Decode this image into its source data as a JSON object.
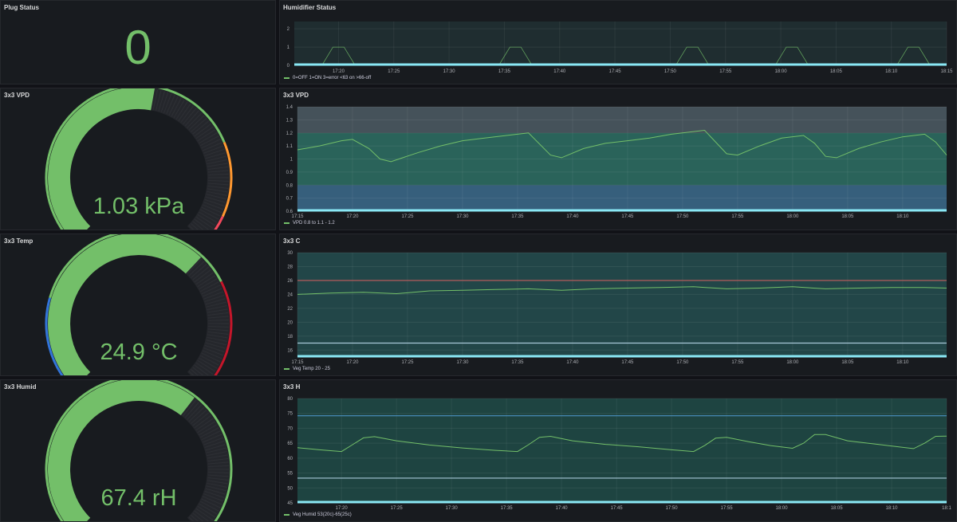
{
  "colors": {
    "background": "#111217",
    "panel": "#181b1f",
    "green": "#73bf69",
    "cyan": "#8ae8f5",
    "red": "#e02f44",
    "orange": "#ff9830",
    "blue": "#3274d9",
    "track": "#2b2d32"
  },
  "plug_status": {
    "title": "Plug Status",
    "value": "0"
  },
  "humidifier_status": {
    "title": "Humidifier Status",
    "legend": "0=OFF 1=ON 3=error <63 on >66-off"
  },
  "gauges": [
    {
      "title": "3x3 VPD",
      "display": "1.03 kPa",
      "value": 1.03,
      "min": 0.6,
      "max": 1.4,
      "thresholds": [
        {
          "from": 0.6,
          "to": 0.62,
          "color": "#5794f2"
        },
        {
          "from": 0.62,
          "to": 1.2,
          "color": "#73bf69"
        },
        {
          "from": 1.2,
          "to": 1.34,
          "color": "#ff9830"
        },
        {
          "from": 1.34,
          "to": 1.4,
          "color": "#f2495c"
        }
      ]
    },
    {
      "title": "3x3 Temp",
      "display": "24.9 °C",
      "value": 24.9,
      "min": 15,
      "max": 30,
      "thresholds": [
        {
          "from": 15,
          "to": 18.4,
          "color": "#3274d9"
        },
        {
          "from": 18.4,
          "to": 26,
          "color": "#73bf69"
        },
        {
          "from": 26,
          "to": 30,
          "color": "#c4162a"
        }
      ]
    },
    {
      "title": "3x3 Humid",
      "display": "67.4 rH",
      "value": 67.4,
      "min": 45,
      "max": 80,
      "thresholds": [
        {
          "from": 45,
          "to": 45.6,
          "color": "#5794f2"
        },
        {
          "from": 45.6,
          "to": 79,
          "color": "#73bf69"
        },
        {
          "from": 79,
          "to": 80,
          "color": "#f2495c"
        }
      ]
    }
  ],
  "chart_data": [
    {
      "type": "line",
      "title": "Humidifier Status",
      "x_ticks": [
        "17:20",
        "17:25",
        "17:30",
        "17:35",
        "17:40",
        "17:45",
        "17:50",
        "17:55",
        "18:00",
        "18:05",
        "18:10",
        "18:15"
      ],
      "x_range": [
        "17:16",
        "18:15"
      ],
      "y_ticks": [
        "0",
        "1",
        "2"
      ],
      "ylim": [
        0,
        2.4
      ],
      "series": [
        {
          "name": "0=OFF 1=ON 3=error <63 on >66-off",
          "color": "#73bf69",
          "points": [
            [
              "17:16",
              0
            ],
            [
              "17:18.5",
              0
            ],
            [
              "17:19.5",
              1
            ],
            [
              "17:20.5",
              1
            ],
            [
              "17:21.5",
              0
            ],
            [
              "17:34.5",
              0
            ],
            [
              "17:35.5",
              1
            ],
            [
              "17:36.5",
              1
            ],
            [
              "17:37.5",
              0
            ],
            [
              "17:50.5",
              0
            ],
            [
              "17:51.5",
              1
            ],
            [
              "17:52.5",
              1
            ],
            [
              "17:53.5",
              0
            ],
            [
              "17:59.5",
              0
            ],
            [
              "18:00.5",
              1
            ],
            [
              "18:01.5",
              1
            ],
            [
              "18:02.5",
              0
            ],
            [
              "18:10.5",
              0
            ],
            [
              "18:11.5",
              1
            ],
            [
              "18:12.5",
              1
            ],
            [
              "18:13.5",
              0
            ]
          ]
        },
        {
          "name": "",
          "color": "#8ae8f5",
          "constant": 0
        }
      ]
    },
    {
      "type": "line",
      "title": "3x3 VPD",
      "x_ticks": [
        "17:15",
        "17:20",
        "17:25",
        "17:30",
        "17:35",
        "17:40",
        "17:45",
        "17:50",
        "17:55",
        "18:00",
        "18:05",
        "18:10"
      ],
      "x_range": [
        "17:15",
        "18:14"
      ],
      "y_ticks": [
        "0.6",
        "0.7",
        "0.8",
        "0.9",
        "1",
        "1.1",
        "1.2",
        "1.3",
        "1.4"
      ],
      "ylim": [
        0.6,
        1.4
      ],
      "bands": [
        {
          "from": 0.6,
          "to": 0.8,
          "color": "#3b6a8c"
        },
        {
          "from": 0.8,
          "to": 1.2,
          "color": "#2d6e64"
        },
        {
          "from": 1.2,
          "to": 1.4,
          "color": "#4c5a64"
        }
      ],
      "series": [
        {
          "name": "VPD 0.8 to 1.1 - 1.2",
          "color": "#73bf69",
          "points": [
            [
              "17:15",
              1.07
            ],
            [
              "17:17",
              1.1
            ],
            [
              "17:19",
              1.14
            ],
            [
              "17:20",
              1.15
            ],
            [
              "17:21.5",
              1.08
            ],
            [
              "17:22.5",
              1.0
            ],
            [
              "17:23.5",
              0.98
            ],
            [
              "17:26",
              1.05
            ],
            [
              "17:28",
              1.1
            ],
            [
              "17:30",
              1.14
            ],
            [
              "17:32",
              1.16
            ],
            [
              "17:34",
              1.18
            ],
            [
              "17:36",
              1.2
            ],
            [
              "17:38",
              1.03
            ],
            [
              "17:39",
              1.01
            ],
            [
              "17:41",
              1.08
            ],
            [
              "17:43",
              1.12
            ],
            [
              "17:45",
              1.14
            ],
            [
              "17:47",
              1.16
            ],
            [
              "17:49",
              1.19
            ],
            [
              "17:51",
              1.21
            ],
            [
              "17:52",
              1.22
            ],
            [
              "17:54",
              1.04
            ],
            [
              "17:55",
              1.03
            ],
            [
              "17:57",
              1.1
            ],
            [
              "17:59",
              1.16
            ],
            [
              "18:01",
              1.18
            ],
            [
              "18:02",
              1.12
            ],
            [
              "18:03",
              1.02
            ],
            [
              "18:04",
              1.01
            ],
            [
              "18:06",
              1.08
            ],
            [
              "18:08",
              1.13
            ],
            [
              "18:10",
              1.17
            ],
            [
              "18:12",
              1.19
            ],
            [
              "18:13",
              1.13
            ],
            [
              "18:14",
              1.03
            ]
          ]
        },
        {
          "name": "",
          "color": "#8ae8f5",
          "constant": 0.6
        }
      ]
    },
    {
      "type": "line",
      "title": "3x3 C",
      "x_ticks": [
        "17:15",
        "17:20",
        "17:25",
        "17:30",
        "17:35",
        "17:40",
        "17:45",
        "17:50",
        "17:55",
        "18:00",
        "18:05",
        "18:10"
      ],
      "x_range": [
        "17:15",
        "18:14"
      ],
      "y_ticks": [
        "16",
        "18",
        "20",
        "22",
        "24",
        "26",
        "28",
        "30"
      ],
      "ylim": [
        15,
        30
      ],
      "bands": [
        {
          "from": 15,
          "to": 30,
          "color": "#234c4f"
        }
      ],
      "series": [
        {
          "name": "Veg Temp 20 - 25",
          "color": "#73bf69",
          "points": [
            [
              "17:15",
              24.0
            ],
            [
              "17:18",
              24.2
            ],
            [
              "17:21",
              24.3
            ],
            [
              "17:24",
              24.1
            ],
            [
              "17:27",
              24.5
            ],
            [
              "17:30",
              24.6
            ],
            [
              "17:33",
              24.7
            ],
            [
              "17:36",
              24.8
            ],
            [
              "17:39",
              24.6
            ],
            [
              "17:42",
              24.8
            ],
            [
              "17:45",
              24.9
            ],
            [
              "17:48",
              25.0
            ],
            [
              "17:51",
              25.1
            ],
            [
              "17:54",
              24.8
            ],
            [
              "17:57",
              24.9
            ],
            [
              "18:00",
              25.1
            ],
            [
              "18:03",
              24.8
            ],
            [
              "18:06",
              24.9
            ],
            [
              "18:09",
              25.0
            ],
            [
              "18:12",
              25.0
            ],
            [
              "18:14",
              24.9
            ]
          ]
        },
        {
          "name": "",
          "color": "#c35c5c",
          "constant": 26
        },
        {
          "name": "",
          "color": "#a8c8d8",
          "constant": 17
        },
        {
          "name": "",
          "color": "#8ae8f5",
          "constant": 15
        }
      ]
    },
    {
      "type": "line",
      "title": "3x3 H",
      "x_ticks": [
        "17:20",
        "17:25",
        "17:30",
        "17:35",
        "17:40",
        "17:45",
        "17:50",
        "17:55",
        "18:00",
        "18:05",
        "18:10",
        "18:1"
      ],
      "x_range": [
        "17:16",
        "18:15"
      ],
      "y_ticks": [
        "45",
        "50",
        "55",
        "60",
        "65",
        "70",
        "75",
        "80"
      ],
      "ylim": [
        45,
        80
      ],
      "bands": [
        {
          "from": 45,
          "to": 80,
          "color": "#1f4a46"
        }
      ],
      "series": [
        {
          "name": "Veg Humid 53(20c)-65(25c)",
          "color": "#73bf69",
          "points": [
            [
              "17:16",
              63.5
            ],
            [
              "17:18",
              62.8
            ],
            [
              "17:20",
              62.2
            ],
            [
              "17:21",
              64.5
            ],
            [
              "17:22",
              66.8
            ],
            [
              "17:23",
              67.2
            ],
            [
              "17:25",
              65.8
            ],
            [
              "17:28",
              64.4
            ],
            [
              "17:31",
              63.4
            ],
            [
              "17:34",
              62.6
            ],
            [
              "17:36",
              62.2
            ],
            [
              "17:37",
              64.5
            ],
            [
              "17:38",
              67.0
            ],
            [
              "17:39",
              67.3
            ],
            [
              "17:41",
              65.8
            ],
            [
              "17:44",
              64.6
            ],
            [
              "17:47",
              63.8
            ],
            [
              "17:50",
              62.8
            ],
            [
              "17:52",
              62.2
            ],
            [
              "17:53",
              64.2
            ],
            [
              "17:54",
              66.7
            ],
            [
              "17:55",
              67.0
            ],
            [
              "17:57",
              65.5
            ],
            [
              "17:59",
              64.2
            ],
            [
              "18:01",
              63.3
            ],
            [
              "18:02",
              65.0
            ],
            [
              "18:03",
              67.9
            ],
            [
              "18:04",
              67.9
            ],
            [
              "18:06",
              65.8
            ],
            [
              "18:09",
              64.5
            ],
            [
              "18:12",
              63.2
            ],
            [
              "18:13",
              65.0
            ],
            [
              "18:14",
              67.3
            ],
            [
              "18:15",
              67.4
            ]
          ]
        },
        {
          "name": "",
          "color": "#4a90c0",
          "constant": 74.2
        },
        {
          "name": "",
          "color": "#a8c8d8",
          "constant": 53.3
        },
        {
          "name": "",
          "color": "#8ae8f5",
          "constant": 45
        }
      ]
    }
  ]
}
